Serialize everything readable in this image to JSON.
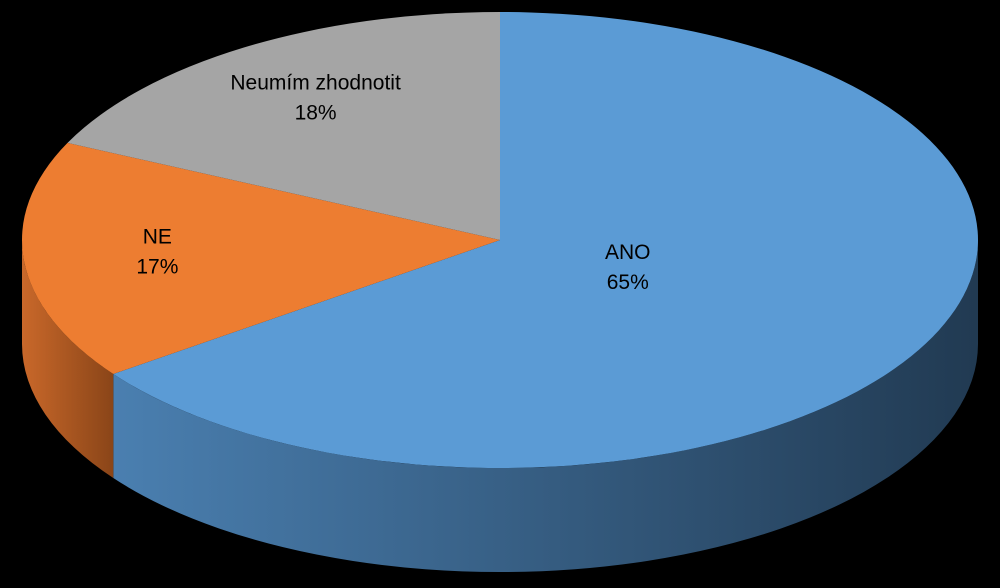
{
  "chart_data": {
    "type": "pie",
    "style": "3d",
    "title": "",
    "slices": [
      {
        "name": "ANO",
        "value": 65,
        "percent_label": "65%",
        "color": "#5B9BD5",
        "side_color_light": "#4A7FB0",
        "side_color_dark": "#213A52"
      },
      {
        "name": "NE",
        "value": 17,
        "percent_label": "17%",
        "color": "#ED7D31",
        "side_color_light": "#C9682A",
        "side_color_dark": "#8A4518"
      },
      {
        "name": "Neumím zhodnotit",
        "value": 18,
        "percent_label": "18%",
        "color": "#A5A5A5",
        "side_color_light": "#8A8A8A",
        "side_color_dark": "#5C5C5C"
      }
    ],
    "start_angle_deg": 0,
    "direction": "clockwise",
    "legend": "none",
    "background": "#000000"
  }
}
